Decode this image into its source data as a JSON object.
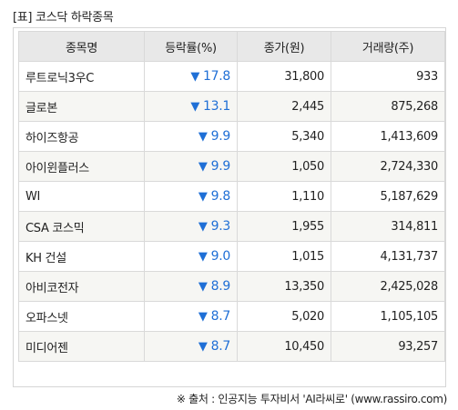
{
  "caption": "[표] 코스닥 하락종목",
  "headers": [
    "종목명",
    "등락률(%)",
    "종가(원)",
    "거래량(주)"
  ],
  "rows": [
    {
      "name": "루트로닉3우C",
      "rate_arrow": "▼",
      "rate": "17.8",
      "close": "31,800",
      "volume": "933"
    },
    {
      "name": "글로본",
      "rate_arrow": "▼",
      "rate": "13.1",
      "close": "2,445",
      "volume": "875,268"
    },
    {
      "name": "하이즈항공",
      "rate_arrow": "▼",
      "rate": "9.9",
      "close": "5,340",
      "volume": "1,413,609"
    },
    {
      "name": "아이윈플러스",
      "rate_arrow": "▼",
      "rate": "9.9",
      "close": "1,050",
      "volume": "2,724,330"
    },
    {
      "name": "WI",
      "rate_arrow": "▼",
      "rate": "9.8",
      "close": "1,110",
      "volume": "5,187,629"
    },
    {
      "name": "CSA 코스믹",
      "rate_arrow": "▼",
      "rate": "9.3",
      "close": "1,955",
      "volume": "314,811"
    },
    {
      "name": "KH 건설",
      "rate_arrow": "▼",
      "rate": "9.0",
      "close": "1,015",
      "volume": "4,131,737"
    },
    {
      "name": "아비코전자",
      "rate_arrow": "▼",
      "rate": "8.9",
      "close": "13,350",
      "volume": "2,425,028"
    },
    {
      "name": "오파스넷",
      "rate_arrow": "▼",
      "rate": "8.7",
      "close": "5,020",
      "volume": "1,105,105"
    },
    {
      "name": "미디어젠",
      "rate_arrow": "▼",
      "rate": "8.7",
      "close": "10,450",
      "volume": "93,257"
    }
  ],
  "source": "※ 출처 : 인공지능 투자비서 'AI라씨로' (www.rassiro.com)",
  "colors": {
    "down": "#1f6fd6",
    "header_bg": "#e8e8e8",
    "stripe_bg": "#f6f6f3"
  }
}
